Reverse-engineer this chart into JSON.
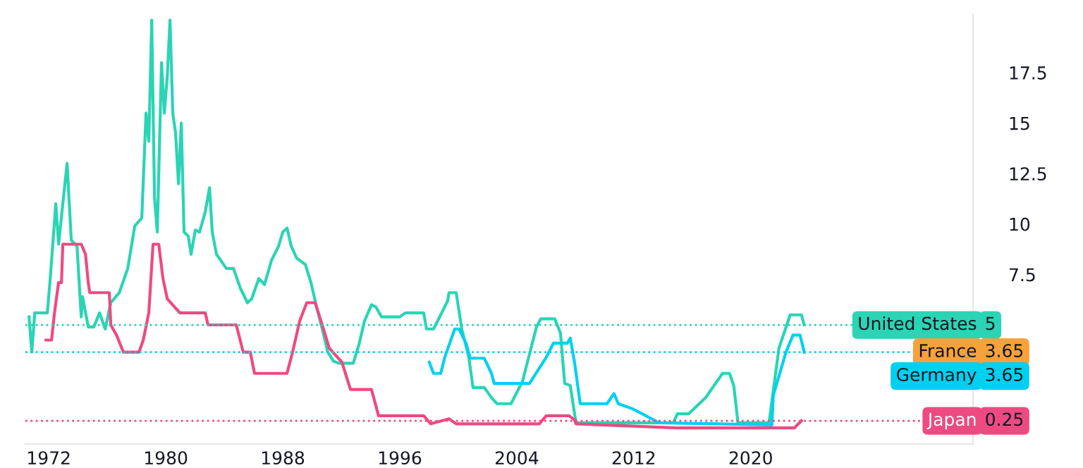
{
  "chart_data": {
    "type": "line",
    "xlim": [
      1970.4,
      2035.2
    ],
    "ylim": [
      -0.9,
      20.4
    ],
    "xticks": [
      {
        "value": 1972,
        "label": "1972"
      },
      {
        "value": 1980,
        "label": "1980"
      },
      {
        "value": 1988,
        "label": "1988"
      },
      {
        "value": 1996,
        "label": "1996"
      },
      {
        "value": 2004,
        "label": "2004"
      },
      {
        "value": 2012,
        "label": "2012"
      },
      {
        "value": 2020,
        "label": "2020"
      }
    ],
    "yticks": [
      7.5,
      10,
      12.5,
      15,
      17.5
    ],
    "grid": false,
    "legend": "bottom right",
    "annotations": [
      "5",
      "3.65",
      "3.65",
      "0.25"
    ],
    "series": [
      {
        "name": "United States",
        "color": "#2ad4b4",
        "x": [
          1970.65,
          1970.84,
          1971.04,
          1971.9,
          1972.1,
          1972.48,
          1972.67,
          1973.25,
          1973.54,
          1973.93,
          1974.22,
          1974.31,
          1974.7,
          1975.08,
          1975.47,
          1975.86,
          1976.24,
          1976.82,
          1977.4,
          1977.88,
          1978.36,
          1978.65,
          1978.84,
          1979.04,
          1979.23,
          1979.42,
          1979.71,
          1979.9,
          1980.1,
          1980.29,
          1980.48,
          1980.67,
          1980.87,
          1981.06,
          1981.25,
          1981.54,
          1981.73,
          1982.02,
          1982.31,
          1982.7,
          1982.99,
          1983.18,
          1983.47,
          1983.76,
          1984.14,
          1984.63,
          1985.11,
          1985.59,
          1985.88,
          1986.36,
          1986.75,
          1987.23,
          1987.71,
          1988.0,
          1988.29,
          1988.58,
          1988.96,
          1989.54,
          1989.93,
          1990.31,
          1990.7,
          1991.08,
          1991.47,
          1991.86,
          1992.82,
          1993.2,
          1993.59,
          1994.07,
          1994.36,
          1994.75,
          1996.0,
          1996.39,
          1997.64,
          1997.83,
          1998.31,
          1998.8,
          1999.28,
          1999.37,
          1999.86,
          2000.24,
          2000.72,
          2001.01,
          2001.78,
          2002.27,
          2002.65,
          2003.61,
          2004.39,
          2005.35,
          2005.64,
          2006.6,
          2006.99,
          2007.28,
          2007.66,
          2008.05,
          2014.7,
          2014.99,
          2015.76,
          2016.92,
          2018.07,
          2018.55,
          2018.84,
          2019.13,
          2021.25,
          2021.93,
          2022.7,
          2023.47,
          2023.66
        ],
        "values": [
          5.4,
          3.65,
          5.6,
          5.6,
          7.3,
          11.0,
          9.0,
          13.0,
          9.2,
          8.9,
          5.4,
          6.4,
          4.9,
          4.9,
          5.6,
          4.8,
          6.1,
          6.6,
          7.8,
          9.9,
          10.3,
          15.5,
          14.1,
          20.1,
          11.3,
          9.6,
          18.0,
          15.5,
          17.3,
          20.1,
          15.5,
          14.5,
          12.0,
          15.0,
          9.6,
          9.4,
          8.5,
          9.7,
          9.6,
          10.6,
          11.8,
          9.6,
          8.5,
          8.2,
          7.8,
          7.8,
          6.8,
          6.1,
          6.3,
          7.3,
          7.0,
          8.2,
          8.9,
          9.6,
          9.8,
          8.9,
          8.3,
          8.0,
          7.1,
          5.9,
          4.8,
          3.65,
          3.2,
          3.1,
          3.1,
          4.0,
          5.2,
          6.0,
          5.9,
          5.4,
          5.4,
          5.6,
          5.6,
          4.8,
          4.8,
          5.5,
          6.2,
          6.6,
          6.6,
          4.8,
          3.4,
          1.9,
          1.9,
          1.4,
          1.1,
          1.1,
          2.2,
          4.9,
          5.3,
          5.3,
          4.6,
          2.1,
          2.0,
          0.15,
          0.15,
          0.6,
          0.6,
          1.4,
          2.6,
          2.6,
          2.0,
          0.15,
          0.15,
          3.85,
          5.5,
          5.5,
          5
        ]
      },
      {
        "name": "France",
        "color": "#f7a13b"
      },
      {
        "name": "Germany",
        "color": "#00d0f0",
        "x": [
          1998.02,
          1998.31,
          1998.8,
          1999.08,
          1999.76,
          2000.05,
          2000.53,
          2000.82,
          2001.78,
          2002.27,
          2002.46,
          2004.87,
          2006.02,
          2006.51,
          2007.47,
          2007.66,
          2007.95,
          2008.34,
          2010.17,
          2010.65,
          2010.94,
          2011.9,
          2012.58,
          2013.73,
          2021.45,
          2021.54,
          2022.41,
          2022.89,
          2023.37,
          2023.66
        ],
        "values": [
          3.15,
          2.6,
          2.6,
          3.4,
          4.8,
          4.8,
          4.1,
          3.35,
          3.35,
          2.6,
          2.1,
          2.1,
          3.4,
          4.1,
          4.1,
          4.35,
          3.15,
          1.1,
          1.1,
          1.6,
          1.1,
          0.85,
          0.6,
          0.15,
          0.05,
          1.5,
          3.65,
          4.5,
          4.5,
          3.65
        ]
      },
      {
        "name": "Japan",
        "color": "#ee4a82",
        "x": [
          1971.81,
          1972.19,
          1972.39,
          1972.67,
          1972.87,
          1972.96,
          1974.22,
          1974.51,
          1974.7,
          1974.8,
          1976.14,
          1976.24,
          1976.63,
          1977.11,
          1978.17,
          1978.46,
          1978.84,
          1979.13,
          1979.52,
          1979.81,
          1980.1,
          1980.96,
          1982.7,
          1982.89,
          1984.82,
          1985.3,
          1985.78,
          1986.07,
          1988.29,
          1988.67,
          1989.16,
          1989.64,
          1990.22,
          1990.7,
          1991.18,
          1992.05,
          1992.63,
          1994.07,
          1994.55,
          1997.64,
          1998.12,
          1999.37,
          1999.86,
          2005.54,
          2006.02,
          2007.57,
          2007.95,
          2008.05,
          2014.99,
          2022.99,
          2023.47
        ],
        "values": [
          4.25,
          4.25,
          5.6,
          7.1,
          7.1,
          9.0,
          9.0,
          8.5,
          7.1,
          6.6,
          6.6,
          5.0,
          4.5,
          3.65,
          3.65,
          4.25,
          5.6,
          9.0,
          9.0,
          7.3,
          6.3,
          5.6,
          5.6,
          5.0,
          5.0,
          3.65,
          3.65,
          2.6,
          2.6,
          3.65,
          5.2,
          6.1,
          6.1,
          5.0,
          3.85,
          3.15,
          1.8,
          1.8,
          0.5,
          0.5,
          0.1,
          0.35,
          0.1,
          0.1,
          0.5,
          0.5,
          0.3,
          0.1,
          -0.1,
          -0.1,
          0.25
        ]
      }
    ],
    "ref_lines": [
      {
        "axis": "y",
        "value": 5,
        "color": "#2ad4b4",
        "line_style": "dotted"
      },
      {
        "axis": "y",
        "value": 3.65,
        "color": "#00d0f0",
        "line_style": "dotted"
      },
      {
        "axis": "y",
        "value": 0.25,
        "color": "#ee4a82",
        "line_style": "dotted"
      }
    ]
  }
}
